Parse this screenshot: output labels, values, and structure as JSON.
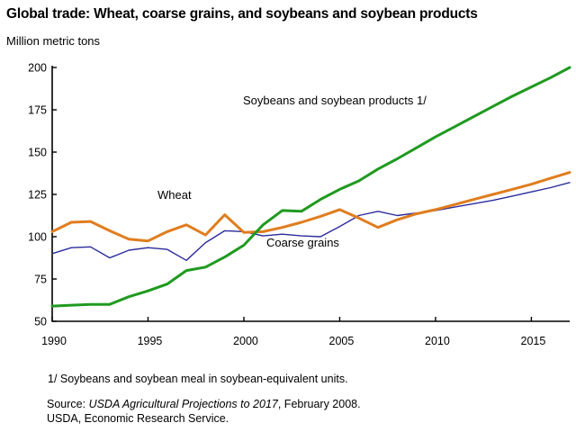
{
  "header": {
    "title": "Global trade: Wheat, coarse grains, and soybeans and soybean products",
    "y_unit_label": "Million metric tons"
  },
  "chart_data": {
    "type": "line",
    "title": "Global trade: Wheat, coarse grains, and soybeans and soybean products",
    "ylabel": "Million metric tons",
    "xlabel": "",
    "grid": false,
    "legend_position": "inline-labels",
    "xlim": [
      1990,
      2017
    ],
    "ylim": [
      50,
      200
    ],
    "x_ticks": [
      1990,
      1995,
      2000,
      2005,
      2010,
      2015
    ],
    "y_ticks": [
      50,
      75,
      100,
      125,
      150,
      175,
      200
    ],
    "x": [
      1990,
      1991,
      1992,
      1993,
      1994,
      1995,
      1996,
      1997,
      1998,
      1999,
      2000,
      2001,
      2002,
      2003,
      2004,
      2005,
      2006,
      2007,
      2008,
      2009,
      2010,
      2011,
      2012,
      2013,
      2014,
      2015,
      2016,
      2017
    ],
    "series": [
      {
        "name": "Coarse grains",
        "color": "#2b2b9b",
        "stroke_width": 1.4,
        "values": [
          90,
          93.5,
          94,
          87.5,
          92,
          93.5,
          92.5,
          86,
          96.5,
          103.5,
          103,
          100.5,
          101.5,
          100.5,
          100,
          106,
          112.5,
          115,
          112.5,
          114,
          115.5,
          117.5,
          119.5,
          121.5,
          124,
          126.5,
          129,
          132
        ]
      },
      {
        "name": "Wheat",
        "color": "#e07d1e",
        "stroke_width": 3,
        "values": [
          103,
          108.5,
          109,
          103.5,
          98.5,
          97.5,
          103,
          107,
          101,
          113,
          102.5,
          103,
          105.5,
          108.5,
          112,
          116,
          111,
          105.5,
          110,
          113.5,
          116,
          119,
          122,
          125,
          128,
          131,
          134.5,
          138
        ]
      },
      {
        "name": "Soybeans and soybean products 1/",
        "color": "#1f9a1f",
        "stroke_width": 3,
        "values": [
          59,
          59.5,
          60,
          60,
          64.5,
          68,
          72,
          80,
          82,
          88,
          95,
          107,
          115.5,
          115,
          122,
          128,
          133,
          140,
          146,
          152.5,
          159,
          165,
          171,
          177,
          183,
          188.5,
          194,
          200
        ]
      }
    ]
  },
  "labels": {
    "soybeans": "Soybeans and soybean products 1/",
    "wheat": "Wheat",
    "coarse_grains": "Coarse grains"
  },
  "footnotes": {
    "note1": "1/ Soybeans and soybean meal in soybean-equivalent units.",
    "source_prefix": "Source: ",
    "source_italic": "USDA Agricultural Projections to 2017",
    "source_suffix": ", February 2008.",
    "agency": "USDA, Economic Research Service."
  }
}
